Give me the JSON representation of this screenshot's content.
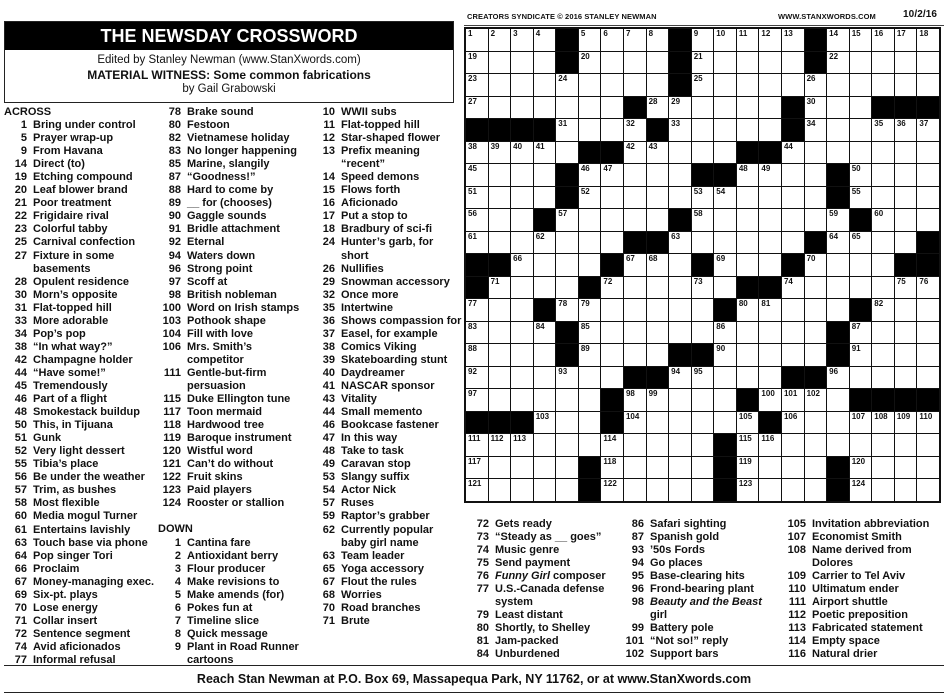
{
  "header": {
    "title": "THE NEWSDAY CROSSWORD",
    "editor": "Edited by Stanley Newman (www.StanXwords.com)",
    "puzzle_title": "MATERIAL WITNESS: Some common fabrications",
    "author": "by Gail Grabowski"
  },
  "topbar": {
    "copyright": "CREATORS SYNDICATE © 2016 STANLEY NEWMAN",
    "website": "WWW.STANXWORDS.COM",
    "date": "10/2/16"
  },
  "across_label": "ACROSS",
  "down_label": "DOWN",
  "across": [
    {
      "n": "1",
      "t": "Bring under control"
    },
    {
      "n": "5",
      "t": "Prayer wrap-up"
    },
    {
      "n": "9",
      "t": "From Havana"
    },
    {
      "n": "14",
      "t": "Direct (to)"
    },
    {
      "n": "19",
      "t": "Etching compound"
    },
    {
      "n": "20",
      "t": "Leaf blower brand"
    },
    {
      "n": "21",
      "t": "Poor treatment"
    },
    {
      "n": "22",
      "t": "Frigidaire rival"
    },
    {
      "n": "23",
      "t": "Colorful tabby"
    },
    {
      "n": "25",
      "t": "Carnival confection"
    },
    {
      "n": "27",
      "t": "Fixture in some basements"
    },
    {
      "n": "28",
      "t": "Opulent residence"
    },
    {
      "n": "30",
      "t": "Morn’s opposite"
    },
    {
      "n": "31",
      "t": "Flat-topped hill"
    },
    {
      "n": "33",
      "t": "More adorable"
    },
    {
      "n": "34",
      "t": "Pop’s pop"
    },
    {
      "n": "38",
      "t": "“In what way?”"
    },
    {
      "n": "42",
      "t": "Champagne holder"
    },
    {
      "n": "44",
      "t": "“Have some!”"
    },
    {
      "n": "45",
      "t": "Tremendously"
    },
    {
      "n": "46",
      "t": "Part of a flight"
    },
    {
      "n": "48",
      "t": "Smokestack buildup"
    },
    {
      "n": "50",
      "t": "This, in Tijuana"
    },
    {
      "n": "51",
      "t": "Gunk"
    },
    {
      "n": "52",
      "t": "Very light dessert"
    },
    {
      "n": "55",
      "t": "Tibia’s place"
    },
    {
      "n": "56",
      "t": "Be under the weather"
    },
    {
      "n": "57",
      "t": "Trim, as bushes"
    },
    {
      "n": "58",
      "t": "Most flexible"
    },
    {
      "n": "60",
      "t": "Media mogul Turner"
    },
    {
      "n": "61",
      "t": "Entertains lavishly"
    },
    {
      "n": "63",
      "t": "Touch base via phone"
    },
    {
      "n": "64",
      "t": "Pop singer Tori"
    },
    {
      "n": "66",
      "t": "Proclaim"
    },
    {
      "n": "67",
      "t": "Money-managing exec."
    },
    {
      "n": "69",
      "t": "Six-pt. plays"
    },
    {
      "n": "70",
      "t": "Lose energy"
    },
    {
      "n": "71",
      "t": "Collar insert"
    },
    {
      "n": "72",
      "t": "Sentence segment"
    },
    {
      "n": "74",
      "t": "Avid aficionados"
    },
    {
      "n": "77",
      "t": "Informal refusal"
    },
    {
      "n": "78",
      "t": "Brake sound"
    },
    {
      "n": "80",
      "t": "Festoon"
    },
    {
      "n": "82",
      "t": "Vietnamese holiday"
    },
    {
      "n": "83",
      "t": "No longer happening"
    },
    {
      "n": "85",
      "t": "Marine, slangily"
    },
    {
      "n": "87",
      "t": "“Goodness!”"
    },
    {
      "n": "88",
      "t": "Hard to come by"
    },
    {
      "n": "89",
      "t": "__ for (chooses)"
    },
    {
      "n": "90",
      "t": "Gaggle sounds"
    },
    {
      "n": "91",
      "t": "Bridle attachment"
    },
    {
      "n": "92",
      "t": "Eternal"
    },
    {
      "n": "94",
      "t": "Waters down"
    },
    {
      "n": "96",
      "t": "Strong point"
    },
    {
      "n": "97",
      "t": "Scoff at"
    },
    {
      "n": "98",
      "t": "British nobleman"
    },
    {
      "n": "100",
      "t": "Word on Irish stamps"
    },
    {
      "n": "103",
      "t": "Pothook shape"
    },
    {
      "n": "104",
      "t": "Fill with love"
    },
    {
      "n": "106",
      "t": "Mrs. Smith’s competitor"
    },
    {
      "n": "111",
      "t": "Gentle-but-firm persuasion"
    },
    {
      "n": "115",
      "t": "Duke Ellington tune"
    },
    {
      "n": "117",
      "t": "Toon mermaid"
    },
    {
      "n": "118",
      "t": "Hardwood tree"
    },
    {
      "n": "119",
      "t": "Baroque instrument"
    },
    {
      "n": "120",
      "t": "Wistful word"
    },
    {
      "n": "121",
      "t": "Can’t do without"
    },
    {
      "n": "122",
      "t": "Fruit skins"
    },
    {
      "n": "123",
      "t": "Paid players"
    },
    {
      "n": "124",
      "t": "Rooster or stallion"
    }
  ],
  "down": [
    {
      "n": "1",
      "t": "Cantina fare"
    },
    {
      "n": "2",
      "t": "Antioxidant berry"
    },
    {
      "n": "3",
      "t": "Flour producer"
    },
    {
      "n": "4",
      "t": "Make revisions to"
    },
    {
      "n": "5",
      "t": "Make amends (for)"
    },
    {
      "n": "6",
      "t": "Pokes fun at"
    },
    {
      "n": "7",
      "t": "Timeline slice"
    },
    {
      "n": "8",
      "t": "Quick message"
    },
    {
      "n": "9",
      "t": "Plant in Road Runner cartoons"
    },
    {
      "n": "10",
      "t": "WWII subs"
    },
    {
      "n": "11",
      "t": "Flat-topped hill"
    },
    {
      "n": "12",
      "t": "Star-shaped flower"
    },
    {
      "n": "13",
      "t": "Prefix meaning “recent”"
    },
    {
      "n": "14",
      "t": "Speed demons"
    },
    {
      "n": "15",
      "t": "Flows forth"
    },
    {
      "n": "16",
      "t": "Aficionado"
    },
    {
      "n": "17",
      "t": "Put a stop to"
    },
    {
      "n": "18",
      "t": "Bradbury of sci-fi"
    },
    {
      "n": "24",
      "t": "Hunter’s garb, for short"
    },
    {
      "n": "26",
      "t": "Nullifies"
    },
    {
      "n": "29",
      "t": "Snowman accessory"
    },
    {
      "n": "32",
      "t": "Once more"
    },
    {
      "n": "35",
      "t": "Intertwine"
    },
    {
      "n": "36",
      "t": "Shows compassion for"
    },
    {
      "n": "37",
      "t": "Easel, for example"
    },
    {
      "n": "38",
      "t": "Comics Viking"
    },
    {
      "n": "39",
      "t": "Skateboarding stunt"
    },
    {
      "n": "40",
      "t": "Daydreamer"
    },
    {
      "n": "41",
      "t": "NASCAR sponsor"
    },
    {
      "n": "43",
      "t": "Vitality"
    },
    {
      "n": "44",
      "t": "Small memento"
    },
    {
      "n": "46",
      "t": "Bookcase fastener"
    },
    {
      "n": "47",
      "t": "In this way"
    },
    {
      "n": "48",
      "t": "Take to task"
    },
    {
      "n": "49",
      "t": "Caravan stop"
    },
    {
      "n": "53",
      "t": "Slangy suffix"
    },
    {
      "n": "54",
      "t": "Actor Nick"
    },
    {
      "n": "57",
      "t": "Ruses"
    },
    {
      "n": "59",
      "t": "Raptor’s grabber"
    },
    {
      "n": "62",
      "t": "Currently popular baby girl name"
    },
    {
      "n": "63",
      "t": "Team leader"
    },
    {
      "n": "65",
      "t": "Yoga accessory"
    },
    {
      "n": "67",
      "t": "Flout the rules"
    },
    {
      "n": "68",
      "t": "Worries"
    },
    {
      "n": "70",
      "t": "Road branches"
    },
    {
      "n": "71",
      "t": "Brute"
    },
    {
      "n": "72",
      "t": "Gets ready"
    },
    {
      "n": "73",
      "t": "“Steady as __ goes”"
    },
    {
      "n": "74",
      "t": "Music genre"
    },
    {
      "n": "75",
      "t": "Send payment"
    },
    {
      "n": "76",
      "it": "Funny Girl",
      "t": " composer"
    },
    {
      "n": "77",
      "t": "U.S.-Canada defense system"
    },
    {
      "n": "79",
      "t": "Least distant"
    },
    {
      "n": "80",
      "t": "Shortly, to Shelley"
    },
    {
      "n": "81",
      "t": "Jam-packed"
    },
    {
      "n": "84",
      "t": "Unburdened"
    },
    {
      "n": "86",
      "t": "Safari sighting"
    },
    {
      "n": "87",
      "t": "Spanish gold"
    },
    {
      "n": "93",
      "t": "’50s Fords"
    },
    {
      "n": "94",
      "t": "Go places"
    },
    {
      "n": "95",
      "t": "Base-clearing hits"
    },
    {
      "n": "96",
      "t": "Frond-bearing plant"
    },
    {
      "n": "98",
      "it": "Beauty and the Beast",
      "t": " girl"
    },
    {
      "n": "99",
      "t": "Battery pole"
    },
    {
      "n": "101",
      "t": "“Not so!” reply"
    },
    {
      "n": "102",
      "t": "Support bars"
    },
    {
      "n": "105",
      "t": "Invitation abbreviation"
    },
    {
      "n": "107",
      "t": "Economist Smith"
    },
    {
      "n": "108",
      "t": "Name derived from Dolores"
    },
    {
      "n": "109",
      "t": "Carrier to Tel Aviv"
    },
    {
      "n": "110",
      "t": "Ultimatum ender"
    },
    {
      "n": "111",
      "t": "Airport shuttle"
    },
    {
      "n": "112",
      "t": "Poetic preposition"
    },
    {
      "n": "113",
      "t": "Fabricated statement"
    },
    {
      "n": "114",
      "t": "Empty space"
    },
    {
      "n": "116",
      "t": "Natural drier"
    }
  ],
  "grid": {
    "rows": [
      "....#....#.....#.....",
      "....#....#.....#.....",
      ".........#...........",
      ".......#......#...###",
      "####....#.....#......",
      ".....##.....##.......",
      "....#.....##....#....",
      "....#...........#....",
      "...#.....#.......#...",
      ".......##......#....#",
      "##....#...#...#....##",
      "#....#......##.......",
      "...#.......#.....#...",
      "....#...........#....",
      "....#....##.....#....",
      ".......##.....##.....",
      "......#.....#....####",
      "###...#......#.......",
      "...........#.........",
      ".....#.....#....#....",
      ".....#.....#....#...."
    ]
  },
  "footer": "Reach Stan Newman at P.O. Box 69, Massapequa Park, NY 11762, or at www.StanXwords.com"
}
